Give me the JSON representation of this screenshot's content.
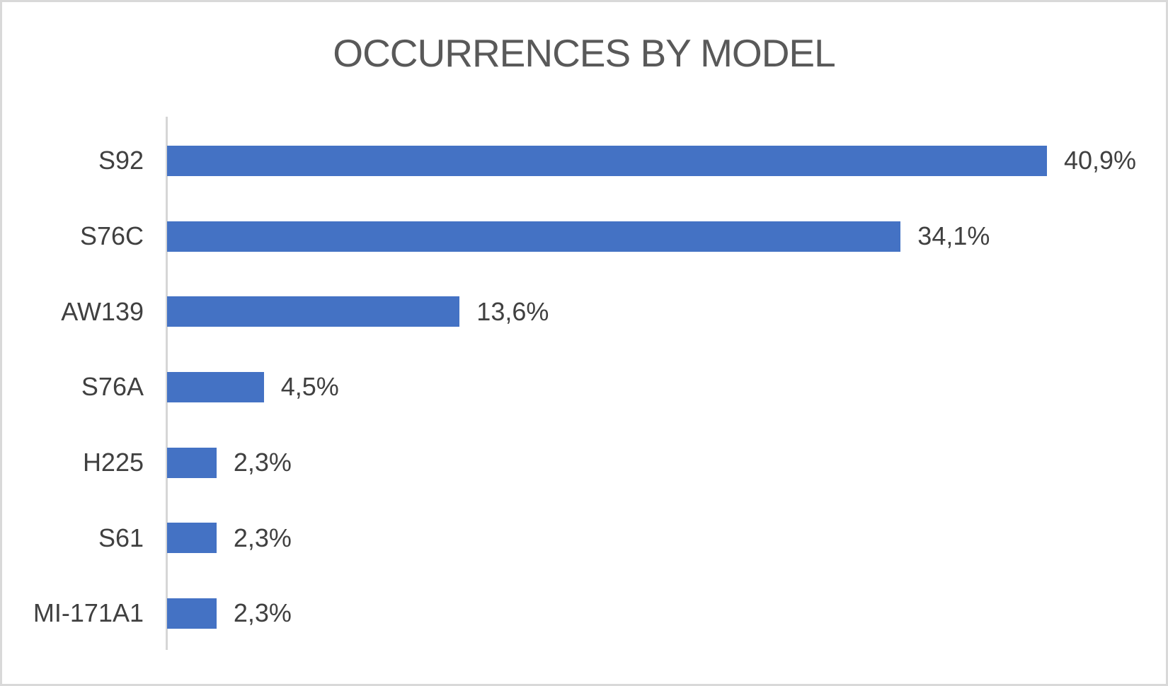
{
  "chart_data": {
    "type": "bar",
    "orientation": "horizontal",
    "title": "OCCURRENCES BY MODEL",
    "categories": [
      "S92",
      "S76C",
      "AW139",
      "S76A",
      "H225",
      "S61",
      "MI-171A1"
    ],
    "values": [
      40.9,
      34.1,
      13.6,
      4.5,
      2.3,
      2.3,
      2.3
    ],
    "data_labels": [
      "40,9%",
      "34,1%",
      "13,6%",
      "4,5%",
      "2,3%",
      "2,3%",
      "2,3%"
    ],
    "value_unit": "percent",
    "decimal_separator": ",",
    "xlabel": "",
    "ylabel": "",
    "xlim": [
      0,
      45
    ],
    "grid": false,
    "legend": false,
    "bar_color": "#4472C4",
    "title_color": "#595959",
    "label_color": "#404040",
    "axis_line_color": "#D6D6D6",
    "frame_border_color": "#D9D9D9",
    "background_color": "#FFFFFF"
  }
}
